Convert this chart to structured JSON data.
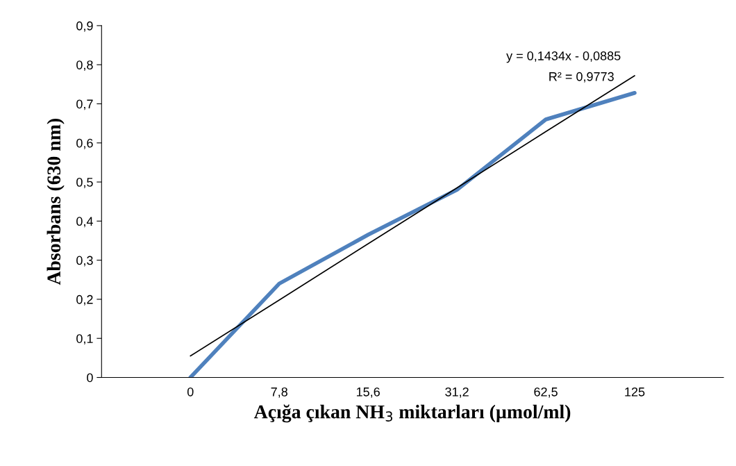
{
  "chart_data": {
    "type": "line",
    "xlabel": "Açığa çıkan NH$_{3}$ miktarları (µmol/ml)",
    "ylabel": "Absorbans (630 nm)",
    "categories": [
      "0",
      "7,8",
      "15,6",
      "31,2",
      "62,5",
      "125"
    ],
    "series": [
      {
        "color": "#4f81bd",
        "values": [
          0,
          0.24,
          0.365,
          0.48,
          0.66,
          0.728
        ]
      },
      {
        "color": "#000000",
        "values": [
          0.055,
          0.198,
          0.342,
          0.485,
          0.629,
          0.772
        ]
      }
    ],
    "annotations": [
      "y = 0,1434x - 0,0885",
      "R² = 0,9773"
    ],
    "ylim": [
      0,
      0.9
    ],
    "yticks": [
      0,
      {
        "value": 0.1,
        "label": "0,1"
      },
      {
        "value": 0.2,
        "label": "0,2"
      },
      {
        "value": 0.3,
        "label": "0,3"
      },
      {
        "value": 0.4,
        "label": "0,4"
      },
      {
        "value": 0.5,
        "label": "0,5"
      },
      {
        "value": 0.6,
        "label": "0,6"
      },
      {
        "value": 0.7,
        "label": "0,7"
      },
      {
        "value": 0.8,
        "label": "0,8"
      },
      {
        "value": 0.9,
        "label": "0,9"
      }
    ],
    "grid": false,
    "legend": false,
    "marker": "none"
  }
}
